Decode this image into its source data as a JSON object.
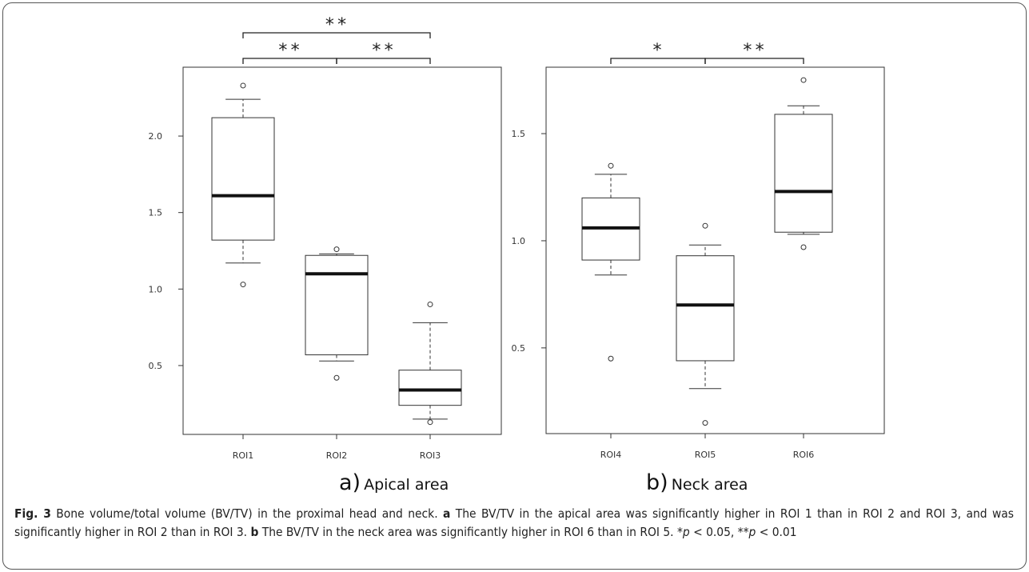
{
  "chart_data": [
    {
      "type": "box",
      "panel": "a",
      "panel_label": "a)",
      "panel_name": "Apical area",
      "categories": [
        "ROI1",
        "ROI2",
        "ROI3"
      ],
      "yticks": [
        0.5,
        1.0,
        1.5,
        2.0
      ],
      "ytick_labels": [
        "0.5",
        "1.0",
        "1.5",
        "2.0"
      ],
      "ylim": [
        0.05,
        2.45
      ],
      "boxes": [
        {
          "category": "ROI1",
          "whisker_low": 1.17,
          "q1": 1.32,
          "median": 1.61,
          "q3": 2.12,
          "whisker_high": 2.24,
          "outliers": [
            1.03,
            2.33
          ]
        },
        {
          "category": "ROI2",
          "whisker_low": 0.53,
          "q1": 0.57,
          "median": 1.1,
          "q3": 1.22,
          "whisker_high": 1.23,
          "outliers": [
            0.42,
            1.26
          ]
        },
        {
          "category": "ROI3",
          "whisker_low": 0.15,
          "q1": 0.24,
          "median": 0.34,
          "q3": 0.47,
          "whisker_high": 0.78,
          "outliers": [
            0.13,
            0.9
          ]
        }
      ],
      "significance": [
        {
          "from": "ROI1",
          "to": "ROI2",
          "label": "**",
          "level": 0
        },
        {
          "from": "ROI2",
          "to": "ROI3",
          "label": "**",
          "level": 0
        },
        {
          "from": "ROI1",
          "to": "ROI3",
          "label": "**",
          "level": 1
        }
      ]
    },
    {
      "type": "box",
      "panel": "b",
      "panel_label": "b)",
      "panel_name": "Neck area",
      "categories": [
        "ROI4",
        "ROI5",
        "ROI6"
      ],
      "yticks": [
        0.5,
        1.0,
        1.5
      ],
      "ytick_labels": [
        "0.5",
        "1.0",
        "1.5"
      ],
      "ylim": [
        0.1,
        1.81
      ],
      "boxes": [
        {
          "category": "ROI4",
          "whisker_low": 0.84,
          "q1": 0.91,
          "median": 1.06,
          "q3": 1.2,
          "whisker_high": 1.31,
          "outliers": [
            0.45,
            1.35
          ]
        },
        {
          "category": "ROI5",
          "whisker_low": 0.31,
          "q1": 0.44,
          "median": 0.7,
          "q3": 0.93,
          "whisker_high": 0.98,
          "outliers": [
            0.15,
            1.07
          ]
        },
        {
          "category": "ROI6",
          "whisker_low": 1.03,
          "q1": 1.04,
          "median": 1.23,
          "q3": 1.59,
          "whisker_high": 1.63,
          "outliers": [
            0.97,
            1.75
          ]
        }
      ],
      "significance": [
        {
          "from": "ROI4",
          "to": "ROI5",
          "label": "*",
          "level": 0
        },
        {
          "from": "ROI5",
          "to": "ROI6",
          "label": "**",
          "level": 0
        }
      ]
    }
  ],
  "caption": {
    "fig_label": "Fig. 3",
    "text_1": " Bone volume/total volume (BV/TV) in the proximal head and neck. ",
    "a_label": "a",
    "text_2": " The BV/TV in the apical area was significantly higher in ROI 1 than in ROI 2 and ROI 3, and was significantly higher in ROI 2 than in ROI 3. ",
    "b_label": "b",
    "text_3": " The BV/TV in the neck area was significantly higher in ROI 6 than in ROI 5. *",
    "p1": "p",
    "text_4": " < 0.05, **",
    "p2": "p",
    "text_5": " < 0.01"
  }
}
